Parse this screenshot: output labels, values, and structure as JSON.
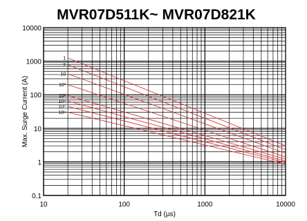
{
  "chart_data": {
    "type": "line",
    "title": "MVR07D511K~ MVR07D821K",
    "xlabel": "Td (µs)",
    "ylabel": "Max. Surge Current (A)",
    "x_scale": "log",
    "y_scale": "log",
    "xlim": [
      10,
      10000
    ],
    "ylim": [
      0.1,
      10000
    ],
    "x_ticks": [
      "10",
      "100",
      "1000",
      "10000"
    ],
    "y_ticks": [
      "0.1",
      "1",
      "10",
      "100",
      "1000",
      "10000"
    ],
    "grid": true,
    "line_color": "#d63a3a",
    "series": [
      {
        "label": "1",
        "x": [
          20,
          10000
        ],
        "y": [
          1250,
          3.0
        ]
      },
      {
        "label": "2",
        "x": [
          20,
          10000
        ],
        "y": [
          780,
          2.3
        ]
      },
      {
        "label": "10",
        "x": [
          20,
          10000
        ],
        "y": [
          420,
          1.8
        ]
      },
      {
        "label": "10²",
        "x": [
          20,
          10000
        ],
        "y": [
          200,
          1.4
        ]
      },
      {
        "label": "10³",
        "x": [
          20,
          10000
        ],
        "y": [
          95,
          1.2
        ]
      },
      {
        "label": "10⁴",
        "x": [
          20,
          10000
        ],
        "y": [
          65,
          1.05
        ]
      },
      {
        "label": "10⁵",
        "x": [
          20,
          10000
        ],
        "y": [
          45,
          0.95
        ]
      },
      {
        "label": "10⁶",
        "x": [
          20,
          10000
        ],
        "y": [
          30,
          0.85
        ]
      }
    ]
  }
}
